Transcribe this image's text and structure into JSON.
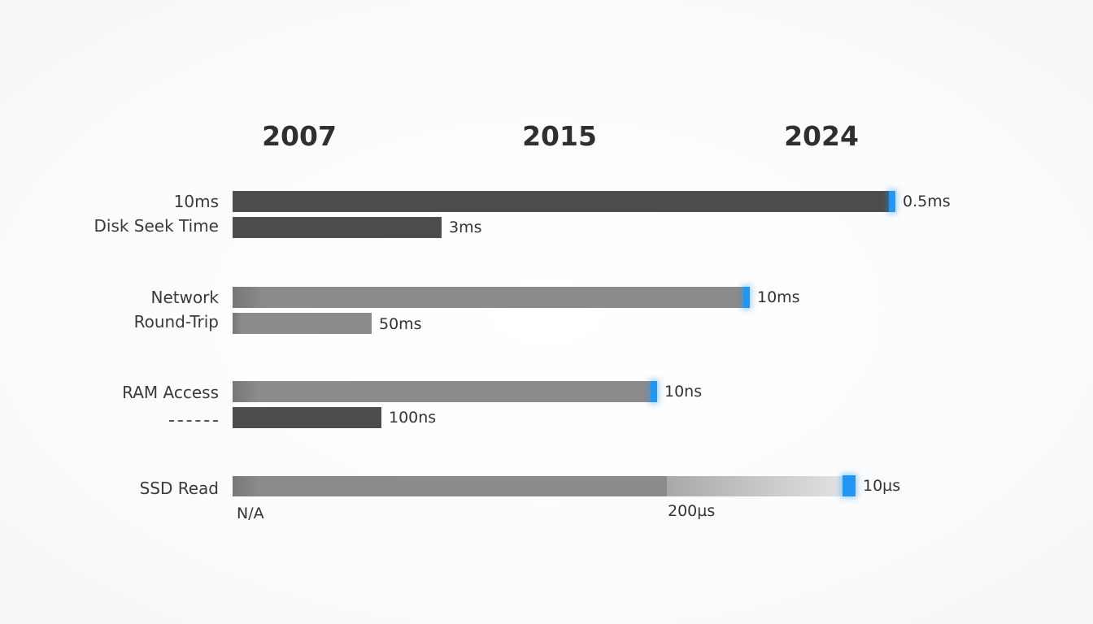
{
  "chart_data": {
    "type": "bar",
    "orientation": "horizontal",
    "timeline_years": [
      "2007",
      "2015",
      "2024"
    ],
    "categories": [
      {
        "label_lines": [
          "10ms",
          "Disk Seek Time"
        ],
        "bars": [
          {
            "value_label": "0.5ms",
            "extent": 1.0,
            "style": "dark",
            "marker": true
          },
          {
            "value_label": "3ms",
            "extent": 0.315,
            "style": "dark",
            "marker": false
          }
        ]
      },
      {
        "label_lines": [
          "Network",
          "Round-Trip"
        ],
        "bars": [
          {
            "value_label": "10ms",
            "extent": 0.78,
            "style": "grey",
            "marker": true
          },
          {
            "value_label": "50ms",
            "extent": 0.21,
            "style": "grey",
            "marker": false
          }
        ]
      },
      {
        "label_lines": [
          "RAM Access",
          ""
        ],
        "bars": [
          {
            "value_label": "10ns",
            "extent": 0.64,
            "style": "grey",
            "marker": true
          },
          {
            "value_label": "100ns",
            "extent": 0.225,
            "style": "dark",
            "marker": false
          }
        ]
      },
      {
        "label_lines": [
          "SSD Read"
        ],
        "bars": [
          {
            "value_label": "10µs",
            "extent": 0.94,
            "style": "grey",
            "marker": true,
            "fade_from": 0.655,
            "marker_big": true
          }
        ],
        "extra_labels": [
          "N/A",
          "200µs"
        ]
      }
    ],
    "accent_color": "#2196f3",
    "dark_bar_color": "#4d4d4d",
    "grey_bar_color": "#8b8b8b"
  }
}
